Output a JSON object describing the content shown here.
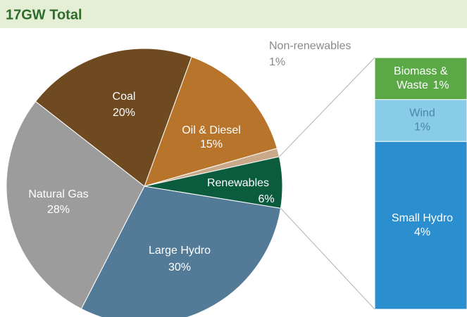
{
  "chart_data": {
    "type": "pie",
    "title": "17GW Total",
    "categories": [
      "Oil & Diesel",
      "Non-renewables",
      "Renewables",
      "Large Hydro",
      "Natural Gas",
      "Coal"
    ],
    "values": [
      15,
      1,
      6,
      30,
      28,
      20
    ],
    "value_labels": [
      "15%",
      "1%",
      "6%",
      "30%",
      "28%",
      "20%"
    ],
    "colors": [
      "#b8742b",
      "#c9a98a",
      "#0b5c3f",
      "#537b97",
      "#9c9c9c",
      "#6f4a20"
    ],
    "breakdown": {
      "categories": [
        "Biomass & Waste",
        "Wind",
        "Small Hydro"
      ],
      "values": [
        1,
        1,
        4
      ],
      "value_labels": [
        "1%",
        "1%",
        "4%"
      ],
      "colors": [
        "#5aa846",
        "#88cce7",
        "#2b8fcf"
      ]
    }
  }
}
